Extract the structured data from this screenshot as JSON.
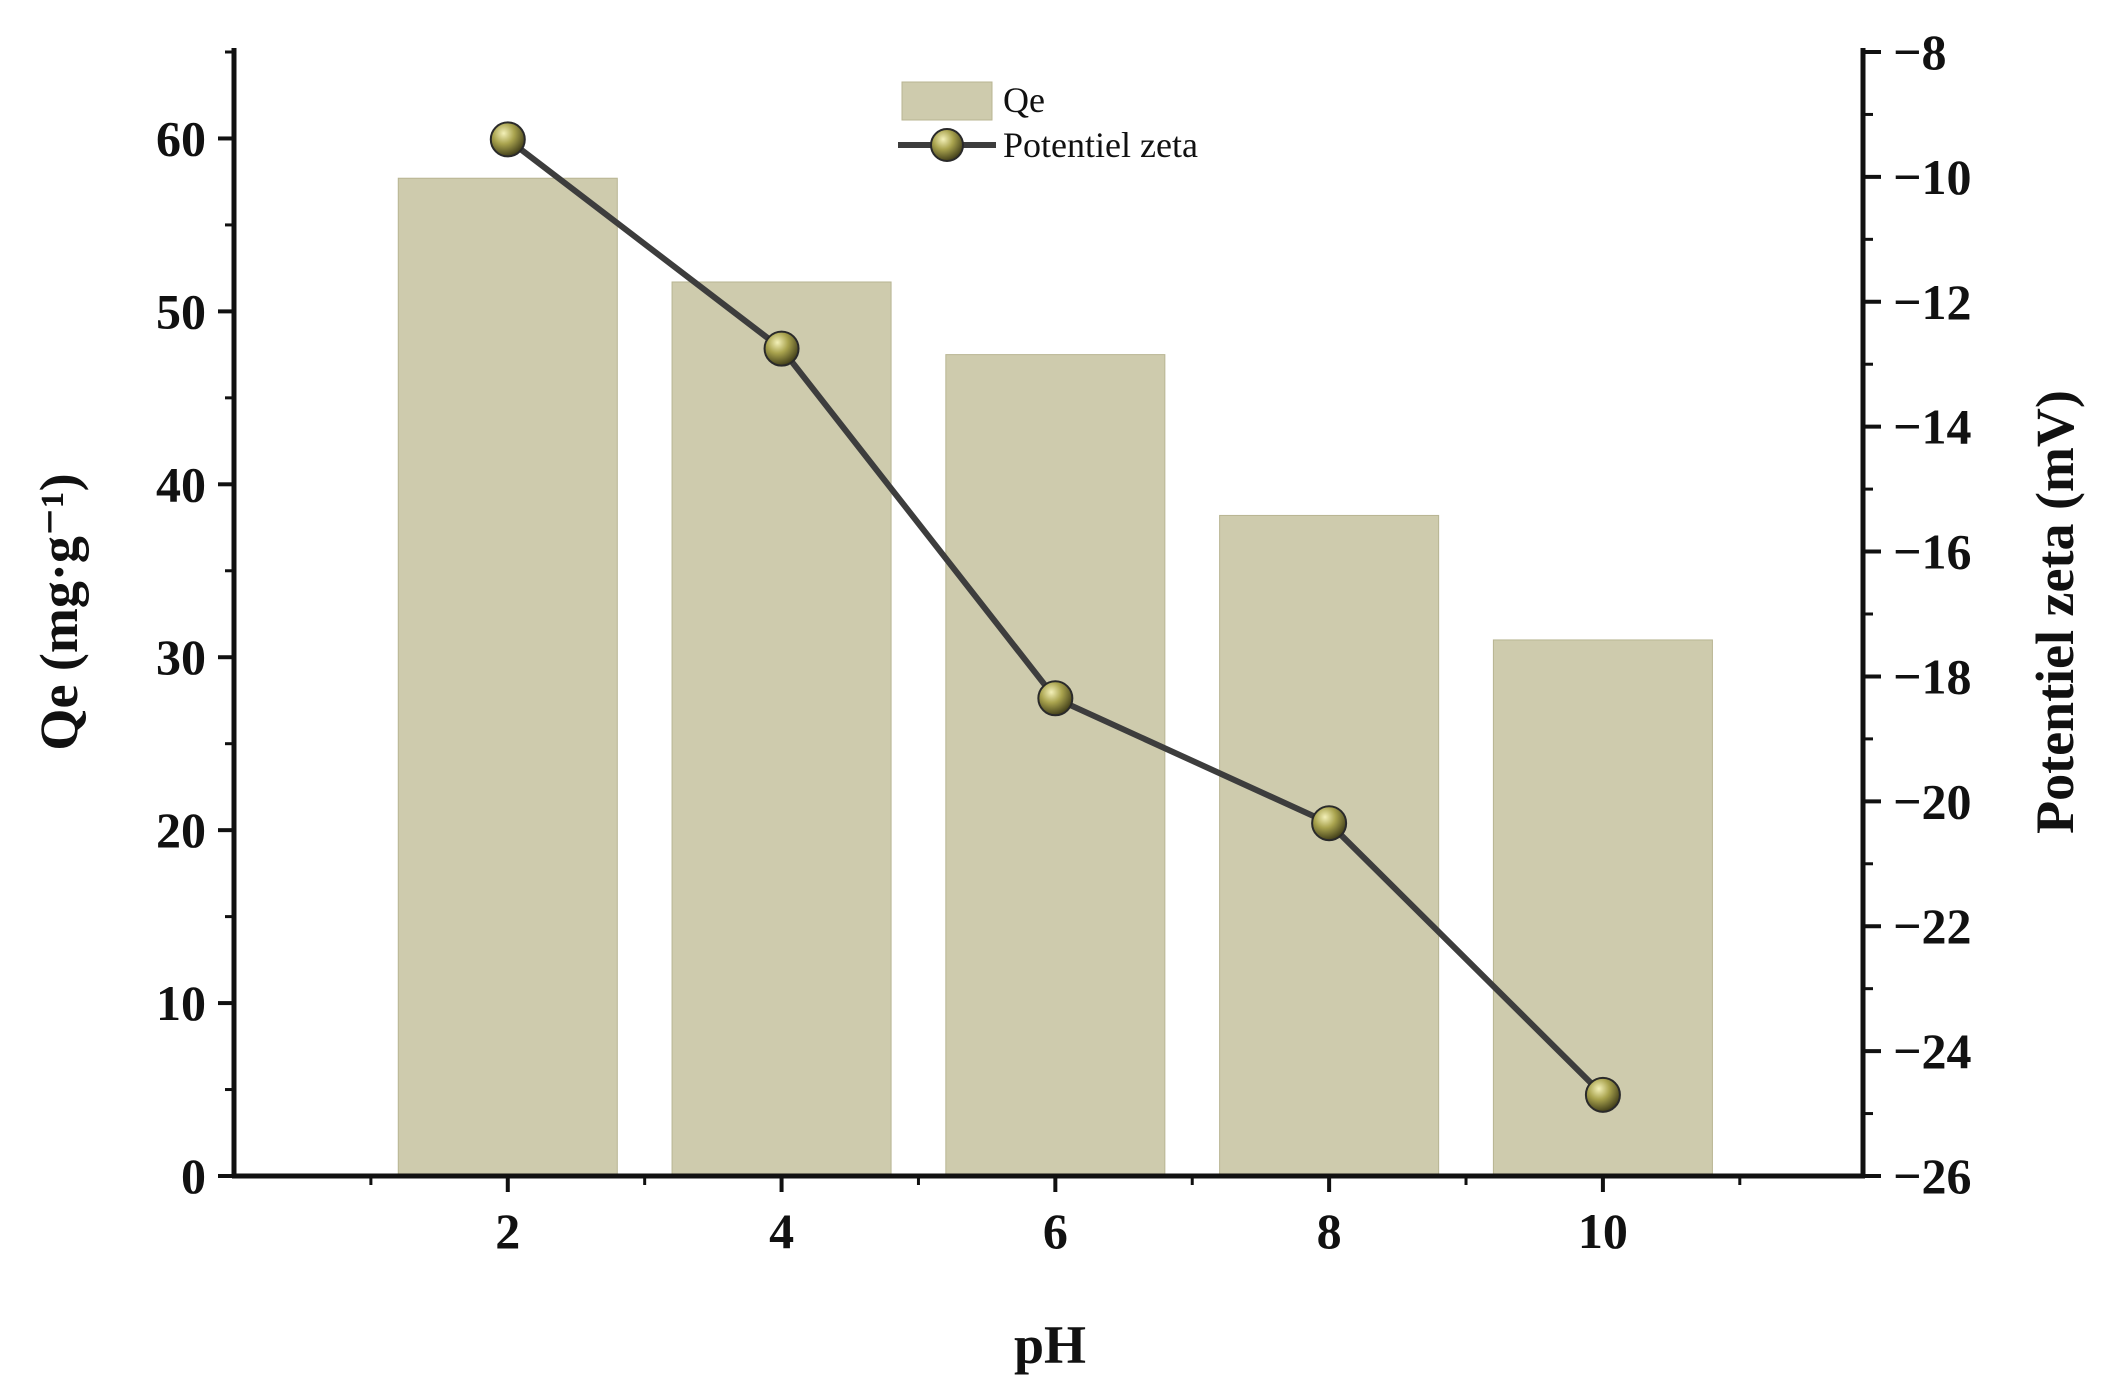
{
  "chart_data": {
    "type": "bar",
    "xlabel": "pH",
    "ylabel": "Qe (mg·g⁻¹)",
    "y2label": "Potentiel zeta (mV)",
    "categories": [
      "2",
      "4",
      "6",
      "8",
      "10"
    ],
    "x": [
      2,
      4,
      6,
      8,
      10
    ],
    "xlim": [
      0,
      11.9
    ],
    "ylim": [
      0,
      65
    ],
    "y2lim": [
      -26,
      -8
    ],
    "yticks": [
      0,
      10,
      20,
      30,
      40,
      50,
      60
    ],
    "y2ticks": [
      -26,
      -24,
      -22,
      -20,
      -18,
      -16,
      -14,
      -12,
      -10,
      -8
    ],
    "y2tick_labels": [
      "−26",
      "−24",
      "−22",
      "−20",
      "−18",
      "−16",
      "−14",
      "−12",
      "−10",
      "−8"
    ],
    "series": [
      {
        "name": "Qe",
        "kind": "bar",
        "axis": "left",
        "values": [
          57.7,
          51.7,
          47.5,
          38.2,
          31.0
        ],
        "color": "#cecbad"
      },
      {
        "name": "Potentiel zeta",
        "kind": "line",
        "axis": "right",
        "values": [
          -9.4,
          -12.75,
          -18.35,
          -20.35,
          -24.7
        ],
        "color": "#3d3d3d",
        "marker_color": "#8f8a3c"
      }
    ],
    "legend_position": "top-center",
    "grid": false
  }
}
